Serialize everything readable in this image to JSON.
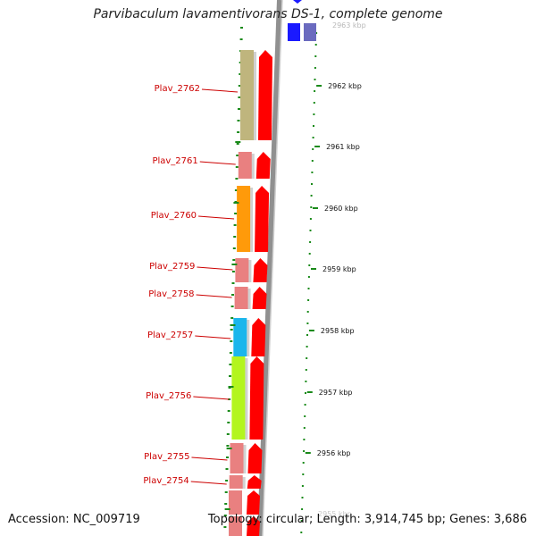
{
  "title": "Parvibaculum lavamentivorans DS-1, complete genome",
  "footer": {
    "accession": "Accession: NC_009719",
    "topology": "Topology: circular; Length: 3,914,745 bp; Genes: 3,686"
  },
  "genes": [
    {
      "id": "Plav_2762",
      "color": "#bfb57d"
    },
    {
      "id": "Plav_2761",
      "color": "#e98080"
    },
    {
      "id": "Plav_2760",
      "color": "#ff9a0a"
    },
    {
      "id": "Plav_2759",
      "color": "#e98080"
    },
    {
      "id": "Plav_2758",
      "color": "#e98080"
    },
    {
      "id": "Plav_2757",
      "color": "#1ab6ec"
    },
    {
      "id": "Plav_2756",
      "color": "#b3f51e"
    },
    {
      "id": "Plav_2755",
      "color": "#e98080"
    },
    {
      "id": "Plav_2754",
      "color": "#e98080"
    }
  ],
  "ticks": [
    "2962 kbp",
    "2961 kbp",
    "2960 kbp",
    "2959 kbp",
    "2958 kbp",
    "2957 kbp",
    "2956 kbp"
  ],
  "colors": {
    "strand_feature": "#ff0000",
    "label": "#cc0000",
    "tick": "#1a8a1a",
    "backbone": "#909090",
    "reverse_feature": "#1a1aff",
    "reverse_feature_alt": "#6a6abf"
  }
}
